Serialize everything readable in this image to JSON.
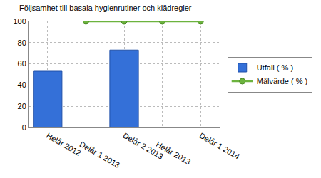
{
  "chart_data": {
    "type": "bar",
    "title": "Följsamhet till basala hygienrutiner och klädregler",
    "categories": [
      "Helår 2012",
      "Delår 1 2013",
      "Delår 2 2013",
      "Helår 2013",
      "Delår 1 2014"
    ],
    "series": [
      {
        "name": "Utfall ( % )",
        "type": "bar",
        "color": "#3470d8",
        "values": [
          53,
          null,
          73,
          null,
          null
        ]
      },
      {
        "name": "Målvärde ( % )",
        "type": "line",
        "color": "#6cb33e",
        "marker": "circle",
        "values": [
          null,
          100,
          100,
          100,
          100
        ]
      }
    ],
    "ylim": [
      0,
      100
    ],
    "yticks": [
      0,
      20,
      40,
      60,
      80,
      100
    ],
    "grid": true,
    "legend": "right"
  }
}
